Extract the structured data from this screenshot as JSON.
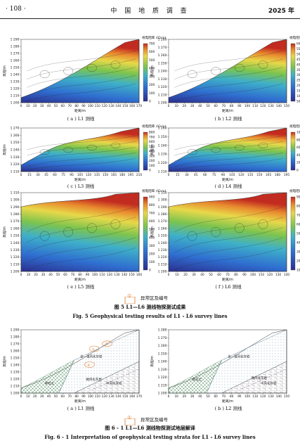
{
  "header": {
    "page_number": "· 108 ·",
    "journal_title": "中 国 地 质 调 查",
    "year": "2025 年"
  },
  "fig5": {
    "caption_cn": "图 5   L1—L6 测线物探测试成果",
    "caption_en": "Fig. 5   Geophysical testing results of L1 - L6 survey lines",
    "legend_label": "异常区及编号",
    "legend_marker": "①",
    "y_axis_label": "高程/m",
    "x_axis_label": "距离/m",
    "colorbar_title": "视电阻率 /(Ω·m)",
    "panels": [
      {
        "id": "a",
        "caption": "( a )  L1 测线",
        "yticks": [
          "1 290",
          "1 280",
          "1 270",
          "1 260",
          "1 250",
          "1 240",
          "1 230",
          "1 220",
          "1 210",
          "1 200"
        ],
        "xticks": [
          "0",
          "10",
          "20",
          "30",
          "40",
          "50",
          "60",
          "70",
          "80",
          "90",
          "100",
          "110",
          "120",
          "130",
          "140",
          "150",
          "160",
          "170"
        ],
        "cbar": [
          "700",
          "600",
          "500",
          "400",
          "300",
          "200",
          "100",
          "0"
        ]
      },
      {
        "id": "b",
        "caption": "( b )  L2 测线",
        "yticks": [
          "1 280",
          "1 270",
          "1 260",
          "1 250",
          "1 240",
          "1 230",
          "1 220",
          "1 210",
          "1 200"
        ],
        "xticks": [
          "0",
          "10",
          "20",
          "30",
          "40",
          "50",
          "60",
          "70",
          "80",
          "90",
          "100",
          "110",
          "120",
          "130",
          "140",
          "150"
        ],
        "cbar": [
          "600",
          "550",
          "500",
          "450",
          "400",
          "350",
          "300",
          "250",
          "200",
          "150",
          "100",
          "50"
        ]
      },
      {
        "id": "c",
        "caption": "( c )  L3 测线",
        "yticks": [
          "1 270",
          "1 260",
          "1 250",
          "1 240",
          "1 230",
          "1 220",
          "1 210"
        ],
        "xticks": [
          "0",
          "15",
          "30",
          "45",
          "60",
          "75",
          "90",
          "105",
          "120",
          "135",
          "150",
          "165",
          "180",
          "195",
          "210"
        ],
        "cbar": [
          "800",
          "700",
          "600",
          "500",
          "400",
          "300",
          "200",
          "100",
          "0"
        ]
      },
      {
        "id": "d",
        "caption": "( d )  L4 测线",
        "yticks": [
          "1 260",
          "1 250",
          "1 240",
          "1 230",
          "1 220",
          "1 210"
        ],
        "xticks": [
          "0",
          "15",
          "30",
          "45",
          "60",
          "75",
          "90",
          "105",
          "120",
          "135",
          "150",
          "165",
          "180",
          "195"
        ],
        "cbar": [
          "1000",
          "800",
          "600",
          "400",
          "200",
          "0"
        ]
      },
      {
        "id": "e",
        "caption": "( e )  L5 测线",
        "yticks": [
          "1 310",
          "1 300",
          "1 290",
          "1 280",
          "1 270",
          "1 260",
          "1 250",
          "1 240",
          "1 230",
          "1 220",
          "1 210",
          "1 200"
        ],
        "xticks": [
          "0",
          "10",
          "20",
          "30",
          "40",
          "50",
          "60",
          "70",
          "80",
          "90",
          "100",
          "110",
          "120",
          "130",
          "140",
          "150",
          "160"
        ],
        "cbar": [
          "900",
          "800",
          "700",
          "600",
          "500",
          "400",
          "300",
          "200",
          "100",
          "0"
        ]
      },
      {
        "id": "f",
        "caption": "( f )  L6 测线",
        "yticks": [
          "1 310",
          "1 300",
          "1 290",
          "1 280",
          "1 270",
          "1 260",
          "1 250",
          "1 240",
          "1 230",
          "1 220",
          "1 210",
          "1 200"
        ],
        "xticks": [
          "0",
          "10",
          "20",
          "30",
          "40",
          "50",
          "60",
          "70",
          "80",
          "90",
          "100",
          "110",
          "120",
          "130",
          "140"
        ],
        "cbar": [
          "900",
          "800",
          "700",
          "600",
          "500",
          "400",
          "300",
          "200",
          "100"
        ]
      }
    ]
  },
  "fig6": {
    "caption_cn": "图 6 - 1   L1—L6 测线物探测试地层解译",
    "caption_en": "Fig. 6 - 1   Interpretation of geophysical testing strata for L1 - L6 survey lines",
    "legend_label": "异常区及编号",
    "legend_marker": "①",
    "panels": [
      {
        "id": "a",
        "caption": "( a )  L1 测线",
        "yticks": [
          "1 290",
          "1 280",
          "1 270",
          "1 260",
          "1 250",
          "1 240",
          "1 230",
          "1 220",
          "1 210",
          "1 200"
        ],
        "xticks": [
          "0",
          "10",
          "20",
          "30",
          "40",
          "50",
          "60",
          "70",
          "80",
          "90",
          "100",
          "110",
          "120",
          "130",
          "140",
          "150",
          "160",
          "170"
        ],
        "labels": [
          "①",
          "②",
          "③",
          "全—强风化灰岩",
          "碎石土",
          "微风化灰岩",
          "中风化灰岩"
        ]
      },
      {
        "id": "b",
        "caption": "( b )  L2 测线",
        "yticks": [
          "1 280",
          "1 270",
          "1 260",
          "1 250",
          "1 240",
          "1 230",
          "1 220",
          "1 210",
          "1 200"
        ],
        "xticks": [
          "0",
          "10",
          "20",
          "30",
          "40",
          "50",
          "60",
          "70",
          "80",
          "90",
          "100",
          "110",
          "120",
          "130",
          "140",
          "150"
        ],
        "labels": [
          "全—强风化灰岩",
          "碎石土",
          "微风化灰岩",
          "中风化灰岩"
        ]
      }
    ]
  },
  "colors": {
    "deep": "#2b2f8f",
    "blue": "#2f6fd0",
    "cyan": "#3fb0c8",
    "green": "#7cc44e",
    "yellow": "#e8d84a",
    "orange": "#e88a2e",
    "red": "#c22b20",
    "marker": "#e07a2a"
  }
}
